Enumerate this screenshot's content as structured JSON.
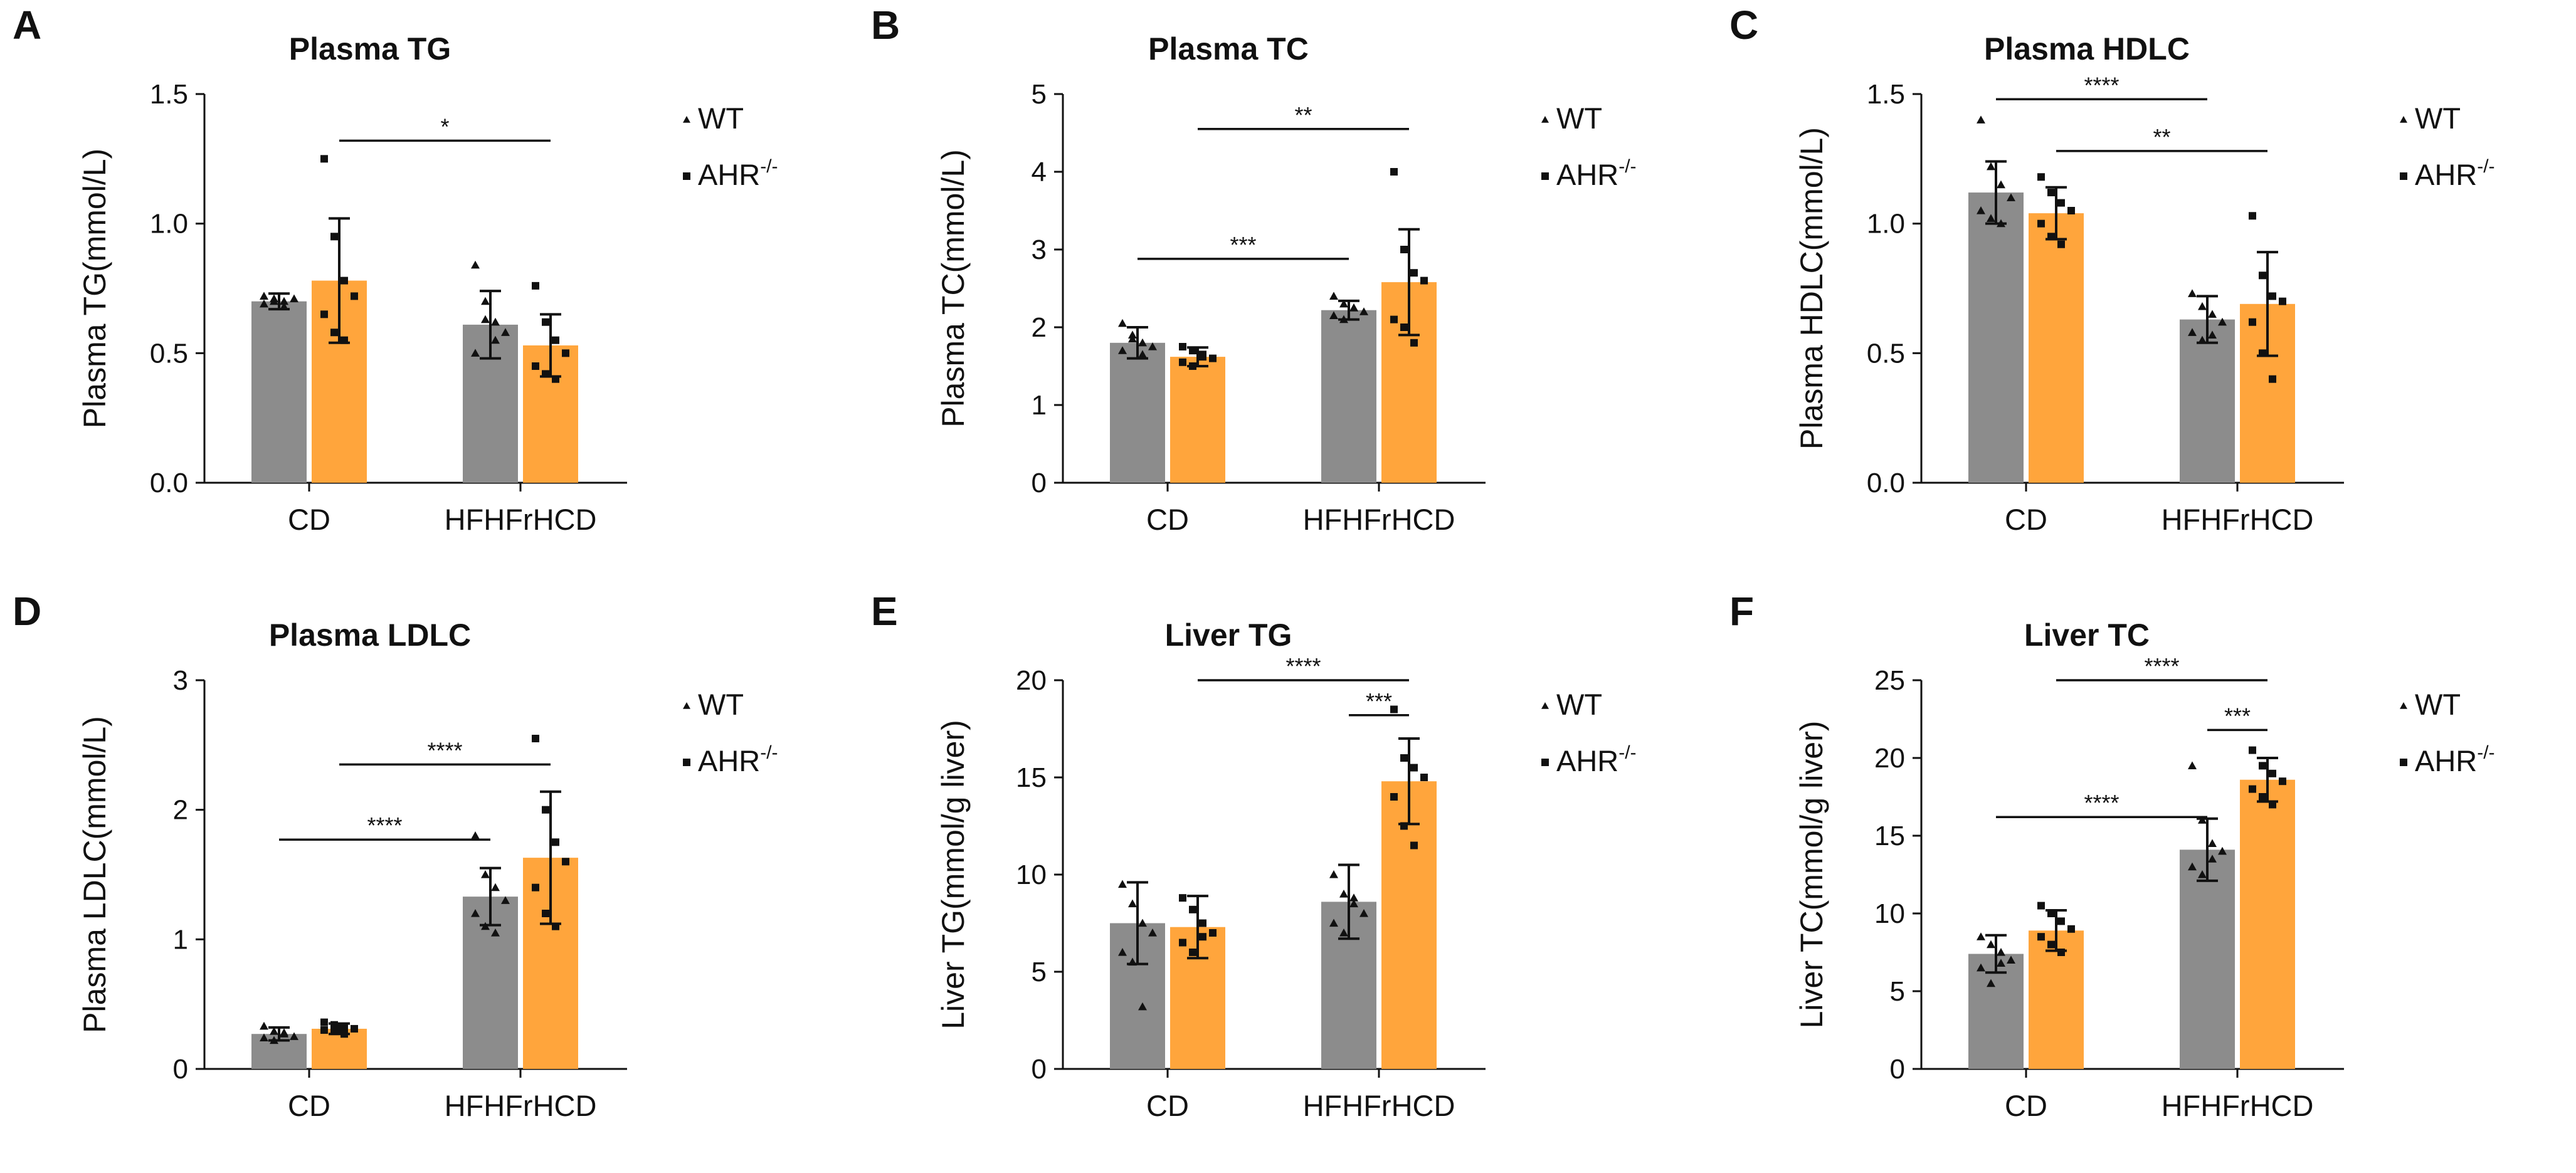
{
  "colors": {
    "wt": "#8c8c8c",
    "ahr": "#ffa53c",
    "ink": "#111111"
  },
  "chart_data": [
    {
      "panel": "A",
      "type": "bar",
      "title": "Plasma TG",
      "ylabel": "Plasma TG(mmol/L)",
      "categories": [
        "CD",
        "HFHFrHCD"
      ],
      "ylim": [
        0,
        1.5
      ],
      "yticks": [
        "0.0",
        "0.5",
        "1.0",
        "1.5"
      ],
      "legend": {
        "wt": "WT",
        "ahr": "AHR",
        "ahr_sup": "-/-"
      },
      "series": [
        {
          "name": "WT",
          "values": [
            0.7,
            0.61
          ],
          "errors": [
            0.03,
            0.13
          ],
          "points": [
            [
              0.72,
              0.7,
              0.68,
              0.71,
              0.69,
              0.71,
              0.7
            ],
            [
              0.84,
              0.7,
              0.62,
              0.58,
              0.5,
              0.63,
              0.55
            ]
          ]
        },
        {
          "name": "AHR-/-",
          "values": [
            0.78,
            0.53
          ],
          "errors": [
            0.24,
            0.12
          ],
          "points": [
            [
              1.25,
              0.95,
              0.78,
              0.72,
              0.65,
              0.58,
              0.55
            ],
            [
              0.76,
              0.62,
              0.55,
              0.5,
              0.45,
              0.42,
              0.4
            ]
          ]
        }
      ],
      "sig": [
        {
          "label": "*",
          "from": [
            0,
            1
          ],
          "to": [
            1,
            1
          ],
          "y": 1.32
        }
      ]
    },
    {
      "panel": "B",
      "type": "bar",
      "title": "Plasma  TC",
      "ylabel": "Plasma TC(mmol/L)",
      "categories": [
        "CD",
        "HFHFrHCD"
      ],
      "ylim": [
        0,
        5
      ],
      "yticks": [
        "0",
        "1",
        "2",
        "3",
        "4",
        "5"
      ],
      "legend": {
        "wt": "WT",
        "ahr": "AHR",
        "ahr_sup": "-/-"
      },
      "series": [
        {
          "name": "WT",
          "values": [
            1.8,
            2.22
          ],
          "errors": [
            0.2,
            0.12
          ],
          "points": [
            [
              2.05,
              1.9,
              1.8,
              1.75,
              1.7,
              1.85,
              1.65
            ],
            [
              2.4,
              2.3,
              2.25,
              2.2,
              2.15,
              2.1,
              2.25
            ]
          ]
        },
        {
          "name": "AHR-/-",
          "values": [
            1.62,
            2.58
          ],
          "errors": [
            0.12,
            0.68
          ],
          "points": [
            [
              1.75,
              1.7,
              1.65,
              1.6,
              1.55,
              1.5,
              1.62
            ],
            [
              4.0,
              3.0,
              2.7,
              2.6,
              2.1,
              2.0,
              1.8
            ]
          ]
        }
      ],
      "sig": [
        {
          "label": "**",
          "from": [
            0,
            1
          ],
          "to": [
            1,
            1
          ],
          "y": 4.55
        },
        {
          "label": "***",
          "from": [
            0,
            0
          ],
          "to": [
            1,
            0
          ],
          "y": 2.88
        }
      ]
    },
    {
      "panel": "C",
      "type": "bar",
      "title": "Plasma HDLC",
      "ylabel": "Plasma HDLC(mmol/L)",
      "categories": [
        "CD",
        "HFHFrHCD"
      ],
      "ylim": [
        0,
        1.5
      ],
      "yticks": [
        "0.0",
        "0.5",
        "1.0",
        "1.5"
      ],
      "legend": {
        "wt": "WT",
        "ahr": "AHR",
        "ahr_sup": "-/-"
      },
      "series": [
        {
          "name": "WT",
          "values": [
            1.12,
            0.63
          ],
          "errors": [
            0.12,
            0.09
          ],
          "points": [
            [
              1.4,
              1.22,
              1.15,
              1.1,
              1.05,
              1.02,
              1.0
            ],
            [
              0.73,
              0.68,
              0.65,
              0.62,
              0.58,
              0.55,
              0.57
            ]
          ]
        },
        {
          "name": "AHR-/-",
          "values": [
            1.04,
            0.69
          ],
          "errors": [
            0.1,
            0.2
          ],
          "points": [
            [
              1.18,
              1.12,
              1.08,
              1.05,
              1.0,
              0.95,
              0.92
            ],
            [
              1.03,
              0.8,
              0.72,
              0.7,
              0.62,
              0.5,
              0.4
            ]
          ]
        }
      ],
      "sig": [
        {
          "label": "****",
          "from": [
            0,
            0
          ],
          "to": [
            1,
            0
          ],
          "y": 1.48
        },
        {
          "label": "**",
          "from": [
            0,
            1
          ],
          "to": [
            1,
            1
          ],
          "y": 1.28
        }
      ]
    },
    {
      "panel": "D",
      "type": "bar",
      "title": "Plasma LDLC",
      "ylabel": "Plasma LDLC(mmol/L)",
      "categories": [
        "CD",
        "HFHFrHCD"
      ],
      "ylim": [
        0,
        3
      ],
      "yticks": [
        "0",
        "1",
        "2",
        "3"
      ],
      "legend": {
        "wt": "WT",
        "ahr": "AHR",
        "ahr_sup": "-/-"
      },
      "series": [
        {
          "name": "WT",
          "values": [
            0.27,
            1.33
          ],
          "errors": [
            0.05,
            0.22
          ],
          "points": [
            [
              0.33,
              0.29,
              0.27,
              0.25,
              0.24,
              0.22,
              0.28
            ],
            [
              1.8,
              1.5,
              1.4,
              1.3,
              1.2,
              1.1,
              1.05
            ]
          ]
        },
        {
          "name": "AHR-/-",
          "values": [
            0.31,
            1.63
          ],
          "errors": [
            0.04,
            0.51
          ],
          "points": [
            [
              0.36,
              0.34,
              0.32,
              0.31,
              0.3,
              0.29,
              0.27
            ],
            [
              2.55,
              2.0,
              1.75,
              1.6,
              1.4,
              1.2,
              1.1
            ]
          ]
        }
      ],
      "sig": [
        {
          "label": "****",
          "from": [
            0,
            1
          ],
          "to": [
            1,
            1
          ],
          "y": 2.35
        },
        {
          "label": "****",
          "from": [
            0,
            0
          ],
          "to": [
            1,
            0
          ],
          "y": 1.77
        }
      ]
    },
    {
      "panel": "E",
      "type": "bar",
      "title": "Liver TG",
      "ylabel": "Liver TG(mmol/g liver)",
      "categories": [
        "CD",
        "HFHFrHCD"
      ],
      "ylim": [
        0,
        20
      ],
      "yticks": [
        "0",
        "5",
        "10",
        "15",
        "20"
      ],
      "legend": {
        "wt": "WT",
        "ahr": "AHR",
        "ahr_sup": "-/-"
      },
      "series": [
        {
          "name": "WT",
          "values": [
            7.5,
            8.6
          ],
          "errors": [
            2.1,
            1.9
          ],
          "points": [
            [
              9.5,
              8.5,
              7.5,
              7.0,
              6.0,
              5.5,
              3.2
            ],
            [
              10.0,
              9.0,
              8.5,
              8.0,
              7.5,
              7.0,
              8.8
            ]
          ]
        },
        {
          "name": "AHR-/-",
          "values": [
            7.3,
            14.8
          ],
          "errors": [
            1.6,
            2.2
          ],
          "points": [
            [
              8.8,
              8.2,
              7.5,
              7.0,
              6.5,
              6.0,
              6.8
            ],
            [
              18.5,
              16.0,
              15.5,
              15.0,
              14.0,
              12.5,
              11.5
            ]
          ]
        }
      ],
      "sig": [
        {
          "label": "****",
          "from": [
            0,
            1
          ],
          "to": [
            1,
            1
          ],
          "y": 20.0
        },
        {
          "label": "***",
          "from": [
            1,
            0
          ],
          "to": [
            1,
            1
          ],
          "y": 18.2
        }
      ]
    },
    {
      "panel": "F",
      "type": "bar",
      "title": "Liver TC",
      "ylabel": "Liver TC(mmol/g liver)",
      "categories": [
        "CD",
        "HFHFrHCD"
      ],
      "ylim": [
        0,
        25
      ],
      "yticks": [
        "0",
        "5",
        "10",
        "15",
        "20",
        "25"
      ],
      "legend": {
        "wt": "WT",
        "ahr": "AHR",
        "ahr_sup": "-/-"
      },
      "series": [
        {
          "name": "WT",
          "values": [
            7.4,
            14.1
          ],
          "errors": [
            1.2,
            2.0
          ],
          "points": [
            [
              8.5,
              8.0,
              7.5,
              7.0,
              6.5,
              5.5,
              6.8
            ],
            [
              19.5,
              16.0,
              14.5,
              14.0,
              13.0,
              12.5,
              13.5
            ]
          ]
        },
        {
          "name": "AHR-/-",
          "values": [
            8.9,
            18.6
          ],
          "errors": [
            1.3,
            1.4
          ],
          "points": [
            [
              10.5,
              10.0,
              9.5,
              9.0,
              8.5,
              8.0,
              7.5
            ],
            [
              20.5,
              19.5,
              19.0,
              18.5,
              18.0,
              17.5,
              17.0
            ]
          ]
        }
      ],
      "sig": [
        {
          "label": "****",
          "from": [
            0,
            1
          ],
          "to": [
            1,
            1
          ],
          "y": 25.0
        },
        {
          "label": "***",
          "from": [
            1,
            0
          ],
          "to": [
            1,
            1
          ],
          "y": 21.8
        },
        {
          "label": "****",
          "from": [
            0,
            0
          ],
          "to": [
            1,
            0
          ],
          "y": 16.2
        }
      ]
    }
  ]
}
